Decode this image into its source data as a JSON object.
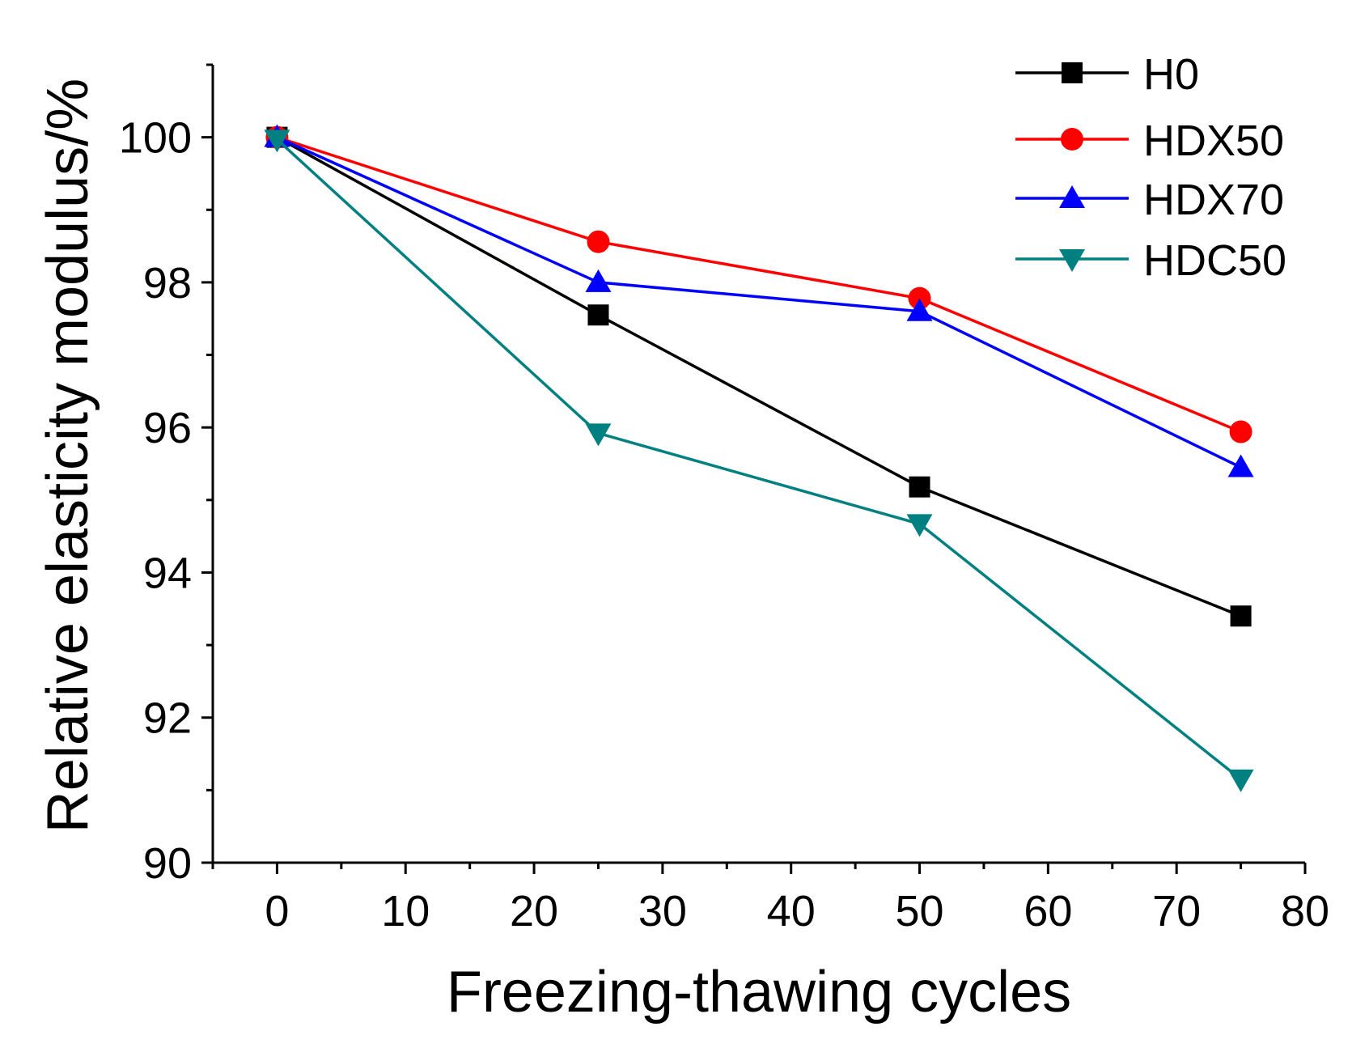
{
  "chart_data": {
    "type": "line",
    "title": "",
    "xlabel": "Freezing-thawing cycles",
    "ylabel": "Relative elasticity modulus/%",
    "xlim": [
      -5,
      80
    ],
    "ylim": [
      90,
      101
    ],
    "xticks": [
      0,
      10,
      20,
      30,
      40,
      50,
      60,
      70,
      80
    ],
    "xtick_labels": [
      "0",
      "10",
      "20",
      "30",
      "40",
      "50",
      "60",
      "70",
      "80"
    ],
    "yticks": [
      90,
      92,
      94,
      96,
      98,
      100
    ],
    "ytick_labels": [
      "90",
      "92",
      "94",
      "96",
      "98",
      "100"
    ],
    "grid": false,
    "legend_position": "top-right",
    "x": [
      0,
      25,
      50,
      75
    ],
    "series": [
      {
        "name": "H0",
        "values": [
          100,
          97.55,
          95.18,
          93.4
        ],
        "color": "#000000",
        "marker": "square"
      },
      {
        "name": "HDX50",
        "values": [
          100,
          98.56,
          97.78,
          95.94
        ],
        "color": "#ff0000",
        "marker": "circle"
      },
      {
        "name": "HDX70",
        "values": [
          100,
          98.0,
          97.6,
          95.45
        ],
        "color": "#0000ff",
        "marker": "triangle-up"
      },
      {
        "name": "HDC50",
        "values": [
          99.97,
          95.92,
          94.67,
          91.15
        ],
        "color": "#008080",
        "marker": "triangle-down"
      }
    ]
  }
}
